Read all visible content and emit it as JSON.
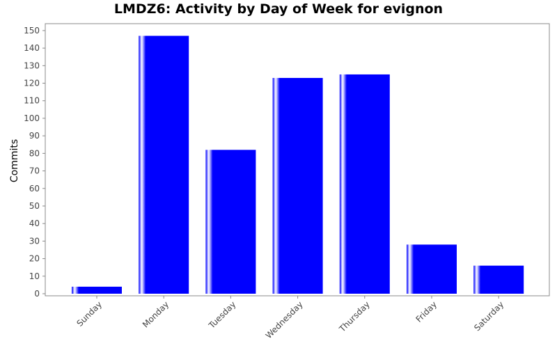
{
  "chart_data": {
    "type": "bar",
    "title": "LMDZ6: Activity by Day of Week for evignon",
    "xlabel": "",
    "ylabel": "Commits",
    "categories": [
      "Sunday",
      "Monday",
      "Tuesday",
      "Wednesday",
      "Thursday",
      "Friday",
      "Saturday"
    ],
    "values": [
      4,
      147,
      82,
      123,
      125,
      28,
      16
    ],
    "ylim": [
      0,
      155
    ],
    "yticks": [
      0,
      10,
      20,
      30,
      40,
      50,
      60,
      70,
      80,
      90,
      100,
      110,
      120,
      130,
      140,
      150
    ],
    "bar_color": "#0000ff",
    "highlight_color": "#ffffff",
    "grid": false
  }
}
